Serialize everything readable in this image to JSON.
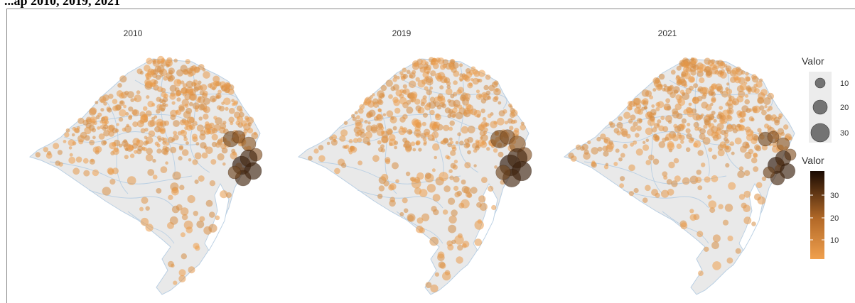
{
  "caption": "...ap 2010, 2019, 2021",
  "panels": [
    {
      "title": "2010",
      "seed": 11,
      "intensity": 1.0
    },
    {
      "title": "2019",
      "seed": 23,
      "intensity": 1.15
    },
    {
      "title": "2021",
      "seed": 37,
      "intensity": 0.9
    }
  ],
  "colors": {
    "region_fill": "#e9e9e9",
    "border": "#b9cfe3",
    "low": "#f0a04e",
    "high": "#1a0a02",
    "size_key": "#555555"
  },
  "legend_size": {
    "title": "Valor",
    "entries": [
      "10",
      "20",
      "30"
    ]
  },
  "legend_color": {
    "title": "Valor",
    "ticks": [
      "30",
      "20",
      "10"
    ]
  },
  "chart_data": {
    "type": "scatter",
    "variable": "Valor",
    "facets": [
      "2010",
      "2019",
      "2021"
    ],
    "color_range": [
      0,
      38
    ],
    "size_range": [
      0,
      30
    ],
    "hotspots": [
      {
        "facet": "2010",
        "value": 35
      },
      {
        "facet": "2019",
        "value": 38
      },
      {
        "facet": "2021",
        "value": 33
      }
    ]
  }
}
